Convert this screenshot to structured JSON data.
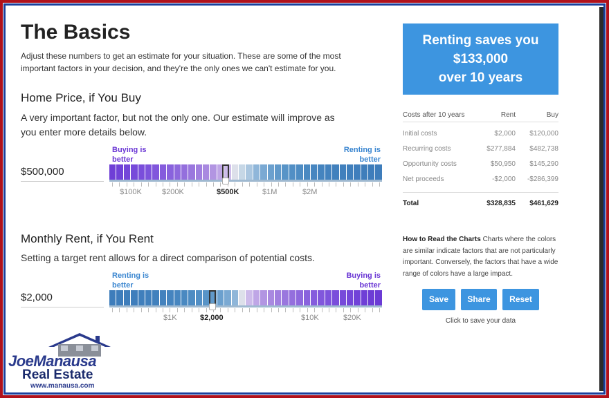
{
  "basics": {
    "title": "The Basics",
    "intro": "Adjust these numbers to get an estimate for your situation. These are some of the most important factors in your decision, and they're the only ones we can't estimate for you."
  },
  "home_price": {
    "title": "Home Price, if You Buy",
    "description": "A very important factor, but not the only one. Our estimate will improve as you enter more details below.",
    "value": "$500,000",
    "left_label": "Buying is better",
    "right_label": "Renting is better",
    "ticks": [
      "$100K",
      "$200K",
      "$500K",
      "$1M",
      "$2M"
    ],
    "selected_tick": "$500K",
    "colors": [
      "#6f3fd6",
      "#7142d8",
      "#7446d9",
      "#774ada",
      "#7a4edb",
      "#7d53dc",
      "#8157dc",
      "#855cdd",
      "#8962dd",
      "#8e68dd",
      "#946fdd",
      "#9a77de",
      "#a17fdf",
      "#a989e0",
      "#b295e2",
      "#bfa6e6",
      "#cdbbea",
      "#dde0ea",
      "#c6d7e6",
      "#abc7e0",
      "#8fb6d9",
      "#7aa9d3",
      "#6ba0ce",
      "#6099ca",
      "#5894c7",
      "#528fc5",
      "#4e8cc3",
      "#4a89c1",
      "#4786c0",
      "#4584bf",
      "#4382be",
      "#4281bd",
      "#4180bd",
      "#407fbc",
      "#3f7ebc",
      "#3f7ebb",
      "#3e7dbb",
      "#3e7dbb"
    ]
  },
  "monthly_rent": {
    "title": "Monthly Rent, if You Rent",
    "description": "Setting a target rent allows for a direct comparison of potential costs.",
    "value": "$2,000",
    "left_label": "Renting is better",
    "right_label": "Buying is better",
    "ticks": [
      "$1K",
      "$2,000",
      "$10K",
      "$20K"
    ],
    "selected_tick": "$2,000",
    "colors": [
      "#3e7dbb",
      "#3e7dbb",
      "#3f7ebb",
      "#3f7ebc",
      "#407fbc",
      "#4180bd",
      "#4281bd",
      "#4382be",
      "#4584bf",
      "#4786c0",
      "#4a89c1",
      "#4e8cc3",
      "#528fc5",
      "#5894c7",
      "#6099ca",
      "#6ba0ce",
      "#7aa9d3",
      "#8fb6d9",
      "#dde0ea",
      "#cdbbea",
      "#bfa6e6",
      "#b295e2",
      "#a989e0",
      "#a17fdf",
      "#9a77de",
      "#946fdd",
      "#8e68dd",
      "#8962dd",
      "#855cdd",
      "#8157dc",
      "#7d53dc",
      "#7a4edb",
      "#774ada",
      "#7446d9",
      "#7142d8",
      "#6f3fd6",
      "#6d3cd5",
      "#6b3ad5"
    ]
  },
  "result": {
    "line1": "Renting saves you",
    "line2": "$133,000",
    "line3": "over 10 years"
  },
  "costs": {
    "header": [
      "Costs after 10 years",
      "Rent",
      "Buy"
    ],
    "rows": [
      [
        "Initial costs",
        "$2,000",
        "$120,000"
      ],
      [
        "Recurring costs",
        "$277,884",
        "$482,738"
      ],
      [
        "Opportunity costs",
        "$50,950",
        "$145,290"
      ],
      [
        "Net proceeds",
        "-$2,000",
        "-$286,399"
      ]
    ],
    "total": [
      "Total",
      "$328,835",
      "$461,629"
    ]
  },
  "howto": {
    "title": "How to Read the Charts",
    "text": "Charts where the colors are similar indicate factors that are not particularly important. Conversely, the factors that have a wide range of colors have a large impact."
  },
  "buttons": {
    "save": "Save",
    "share": "Share",
    "reset": "Reset",
    "note": "Click to save your data"
  },
  "logo": {
    "line1": "JoeManausa",
    "line2": "Real Estate",
    "line3": "www.manausa.com"
  },
  "colors": {
    "accent": "#3d95e0",
    "purple": "#6a36d4",
    "blue_label": "#3a86d0",
    "frame_red": "#b0111b",
    "frame_blue": "#1a3f9c"
  }
}
